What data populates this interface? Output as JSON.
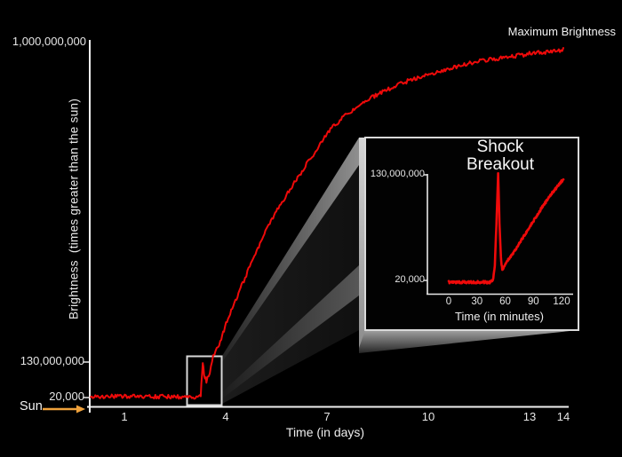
{
  "figure": {
    "max_brightness_label": "Maximum Brightness",
    "sun_label": "Sun"
  },
  "colors": {
    "background": "#000000",
    "curve_red": "#ee0a0a",
    "axis_white": "#f0f0f0",
    "label_gray": "#e6e6e6",
    "sun_arrow_orange": "#f0a23c",
    "inset_border": "#d9d9d9"
  },
  "chart_data": [
    {
      "id": "main-light-curve",
      "type": "line",
      "title": "",
      "xlabel": "Time (in days)",
      "ylabel": "Brightness  (times greater than the sun)",
      "xlim": [
        0,
        14.2
      ],
      "ylim": [
        0,
        1000000000
      ],
      "grid": false,
      "legend": "none",
      "xticks": [
        1,
        4,
        7,
        10,
        13,
        14
      ],
      "yticks": [
        {
          "label": "1,000,000,000",
          "value": 1000000000
        },
        {
          "label": "130,000,000",
          "value": 130000000
        },
        {
          "label": "20,000",
          "value": 20000
        }
      ],
      "annotations": [
        {
          "text": "Maximum Brightness",
          "x": 14,
          "y": 1000000000
        },
        {
          "text": "Sun",
          "x": 0,
          "y": 20000
        }
      ],
      "series": [
        {
          "name": "supernova brightness",
          "color": "#ee0a0a",
          "anchors": [
            [
              0.0,
              20000
            ],
            [
              3.24,
              20000
            ],
            [
              3.28,
              60000000
            ],
            [
              3.32,
              123000000
            ],
            [
              3.36,
              85000000
            ],
            [
              3.43,
              70000000
            ],
            [
              3.53,
              92000000
            ],
            [
              3.63,
              136000000
            ],
            [
              3.84,
              177000000
            ],
            [
              3.95,
              208000000
            ],
            [
              4.1,
              249000000
            ],
            [
              4.29,
              286000000
            ],
            [
              4.47,
              329000000
            ],
            [
              4.68,
              375000000
            ],
            [
              4.95,
              431000000
            ],
            [
              5.21,
              484000000
            ],
            [
              5.53,
              535000000
            ],
            [
              5.87,
              588000000
            ],
            [
              6.26,
              642000000
            ],
            [
              6.66,
              697000000
            ],
            [
              7.0,
              746000000
            ],
            [
              7.45,
              787000000
            ],
            [
              7.84,
              813000000
            ],
            [
              8.37,
              845000000
            ],
            [
              8.89,
              869000000
            ],
            [
              9.42,
              889000000
            ],
            [
              9.95,
              906000000
            ],
            [
              10.47,
              918000000
            ],
            [
              11.0,
              932000000
            ],
            [
              11.53,
              942000000
            ],
            [
              12.05,
              949000000
            ],
            [
              12.58,
              956000000
            ],
            [
              13.1,
              964000000
            ],
            [
              13.63,
              968000000
            ],
            [
              14.0,
              973000000
            ]
          ]
        }
      ]
    },
    {
      "id": "inset-shock-breakout",
      "type": "line",
      "title": "Shock\nBreakout",
      "xlabel": "Time (in minutes)",
      "xlim": [
        -8,
        128
      ],
      "ylim": [
        20000,
        140000000
      ],
      "grid": false,
      "legend": "none",
      "xticks": [
        0,
        30,
        60,
        90,
        120
      ],
      "yticks": [
        {
          "label": "130,000,000",
          "value": 130000000
        },
        {
          "label": "20,000",
          "value": 20000
        }
      ],
      "series": [
        {
          "name": "shock breakout detail",
          "color": "#ee0a0a",
          "anchors": [
            [
              0,
              20000
            ],
            [
              44,
              20000
            ],
            [
              47,
              3000000
            ],
            [
              49,
              20000000
            ],
            [
              51,
              80000000
            ],
            [
              52.5,
              131000000
            ],
            [
              54,
              70000000
            ],
            [
              55.5,
              30000000
            ],
            [
              57,
              14000000
            ],
            [
              60,
              22000000
            ],
            [
              70,
              38000000
            ],
            [
              80,
              56000000
            ],
            [
              90,
              74000000
            ],
            [
              100,
              92000000
            ],
            [
              110,
              108000000
            ],
            [
              120,
              122000000
            ],
            [
              122,
              125000000
            ]
          ]
        }
      ]
    }
  ]
}
